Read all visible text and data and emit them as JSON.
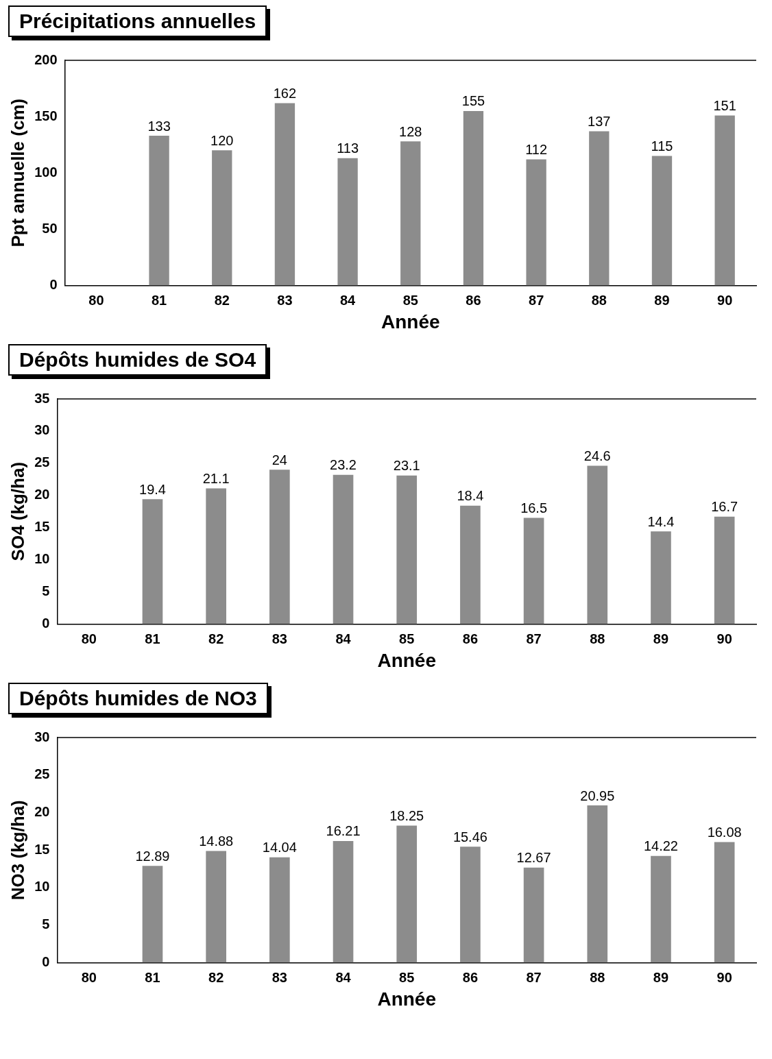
{
  "chart_data": [
    {
      "type": "bar",
      "title": "Précipitations annuelles",
      "xlabel": "Année",
      "ylabel": "Ppt annuelle (cm)",
      "categories": [
        "80",
        "81",
        "82",
        "83",
        "84",
        "85",
        "86",
        "87",
        "88",
        "89",
        "90"
      ],
      "values": [
        null,
        133,
        120,
        162,
        113,
        128,
        155,
        112,
        137,
        115,
        151
      ],
      "color": "#8c8c8c",
      "ylim": [
        0,
        200
      ],
      "yticks": [
        0,
        50,
        100,
        150,
        200
      ],
      "data_labels": true
    },
    {
      "type": "bar",
      "title": "Dépôts humides de SO4",
      "xlabel": "Année",
      "ylabel": "SO4 (kg/ha)",
      "categories": [
        "80",
        "81",
        "82",
        "83",
        "84",
        "85",
        "86",
        "87",
        "88",
        "89",
        "90"
      ],
      "values": [
        null,
        19.4,
        21.1,
        24,
        23.2,
        23.1,
        18.4,
        16.5,
        24.6,
        14.4,
        16.7
      ],
      "color": "#8c8c8c",
      "ylim": [
        0,
        35
      ],
      "yticks": [
        0,
        5,
        10,
        15,
        20,
        25,
        30,
        35
      ],
      "data_labels": true
    },
    {
      "type": "bar",
      "title": "Dépôts humides de NO3",
      "xlabel": "Année",
      "ylabel": "NO3 (kg/ha)",
      "categories": [
        "80",
        "81",
        "82",
        "83",
        "84",
        "85",
        "86",
        "87",
        "88",
        "89",
        "90"
      ],
      "values": [
        null,
        12.89,
        14.88,
        14.04,
        16.21,
        18.25,
        15.46,
        12.67,
        20.95,
        14.22,
        16.08
      ],
      "color": "#8c8c8c",
      "ylim": [
        0,
        30
      ],
      "yticks": [
        0,
        5,
        10,
        15,
        20,
        25,
        30
      ],
      "data_labels": true
    }
  ]
}
